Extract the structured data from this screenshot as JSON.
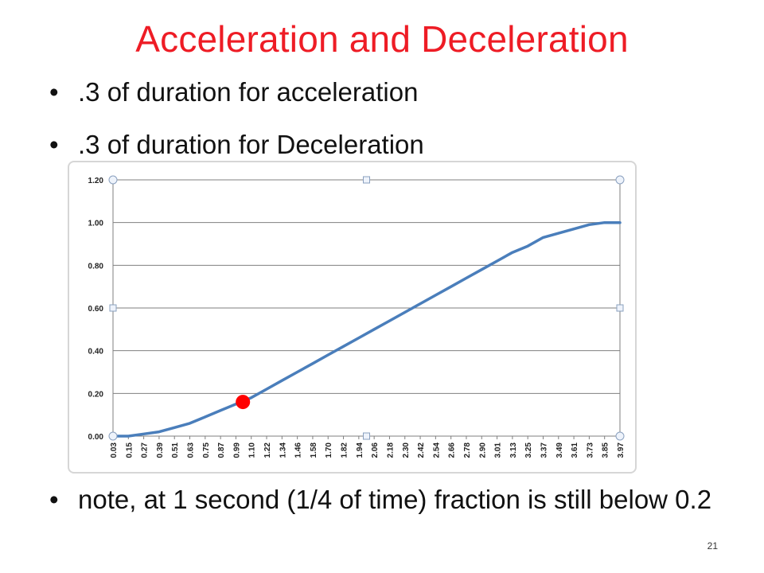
{
  "slide": {
    "title": "Acceleration  and Deceleration",
    "bullets": [
      ".3 of duration for acceleration",
      ".3 of duration for Deceleration",
      "note, at 1 second (1/4 of time) fraction is still below 0.2"
    ],
    "page_number": "21"
  },
  "colors": {
    "title": "#ee1c25",
    "series": "#4a7ebb",
    "marker": "#ff0000",
    "grid": "#7f7f7f"
  },
  "chart_data": {
    "type": "line",
    "title": "",
    "xlabel": "",
    "ylabel": "",
    "ylim": [
      0,
      1.2
    ],
    "y_ticks": [
      "0.00",
      "0.20",
      "0.40",
      "0.60",
      "0.80",
      "1.00",
      "1.20"
    ],
    "x_ticks": [
      "0.03",
      "0.15",
      "0.27",
      "0.39",
      "0.51",
      "0.63",
      "0.75",
      "0.87",
      "0.99",
      "1.10",
      "1.22",
      "1.34",
      "1.46",
      "1.58",
      "1.70",
      "1.82",
      "1.94",
      "2.06",
      "2.18",
      "2.30",
      "2.42",
      "2.54",
      "2.66",
      "2.78",
      "2.90",
      "3.01",
      "3.13",
      "3.25",
      "3.37",
      "3.49",
      "3.61",
      "3.73",
      "3.85",
      "3.97"
    ],
    "grid": true,
    "legend": "none",
    "series": [
      {
        "x": [
          0.03,
          0.15,
          0.27,
          0.39,
          0.51,
          0.63,
          0.75,
          0.87,
          0.99,
          1.1,
          1.22,
          1.34,
          1.46,
          1.58,
          1.7,
          1.82,
          1.94,
          2.06,
          2.18,
          2.3,
          2.42,
          2.54,
          2.66,
          2.78,
          2.9,
          3.01,
          3.13,
          3.25,
          3.37,
          3.49,
          3.61,
          3.73,
          3.85,
          3.97
        ],
        "y": [
          0.0,
          0.0,
          0.01,
          0.02,
          0.04,
          0.06,
          0.09,
          0.12,
          0.15,
          0.18,
          0.22,
          0.26,
          0.3,
          0.34,
          0.38,
          0.42,
          0.46,
          0.5,
          0.54,
          0.58,
          0.62,
          0.66,
          0.7,
          0.74,
          0.78,
          0.82,
          0.86,
          0.89,
          0.93,
          0.95,
          0.97,
          0.99,
          1.0,
          1.0
        ]
      }
    ],
    "highlight_point": {
      "x": 1.04,
      "y": 0.16
    }
  }
}
